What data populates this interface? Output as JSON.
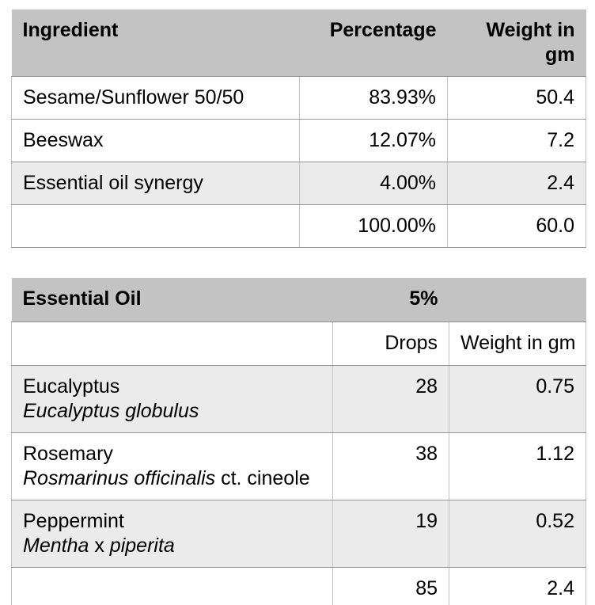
{
  "colors": {
    "header_bg": "#c3c3c3",
    "shaded_row_bg": "#ebebeb",
    "row_bg": "#ffffff",
    "horizontal_border": "#949494",
    "vertical_border": "#c2c2c2",
    "text": "#000000"
  },
  "oil_blend_table": {
    "header": {
      "ingredient": "Ingredient",
      "percentage": "Percentage",
      "weight": "Weight in gm"
    },
    "rows": [
      {
        "ingredient": "Sesame/Sunflower 50/50",
        "percentage": "83.93%",
        "weight": "50.4",
        "shade": false
      },
      {
        "ingredient": "Beeswax",
        "percentage": "12.07%",
        "weight": "7.2",
        "shade": false
      },
      {
        "ingredient": "Essential oil synergy",
        "percentage": "4.00%",
        "weight": "2.4",
        "shade": true
      },
      {
        "ingredient": "",
        "percentage": "100.00%",
        "weight": "60.0",
        "shade": false
      }
    ]
  },
  "essential_oil_table": {
    "header": {
      "title": "Essential Oil",
      "percentage": "5%"
    },
    "subheader": {
      "drops": "Drops",
      "weight": "Weight in gm"
    },
    "rows": [
      {
        "name": "Eucalyptus",
        "latin": [
          {
            "text": "Eucalyptus globulus",
            "italic": true
          }
        ],
        "drops": "28",
        "weight": "0.75",
        "shade": true
      },
      {
        "name": "Rosemary",
        "latin": [
          {
            "text": "Rosmarinus officinalis",
            "italic": true
          },
          {
            "text": " ct. cineole",
            "italic": false
          }
        ],
        "drops": "38",
        "weight": "1.12",
        "shade": false
      },
      {
        "name": "Peppermint",
        "latin": [
          {
            "text": "Mentha",
            "italic": true
          },
          {
            "text": " x ",
            "italic": false
          },
          {
            "text": "piperita",
            "italic": true
          }
        ],
        "drops": "19",
        "weight": "0.52",
        "shade": true
      },
      {
        "name": "",
        "latin": [],
        "drops": "85",
        "weight": "2.4",
        "shade": false
      }
    ]
  }
}
